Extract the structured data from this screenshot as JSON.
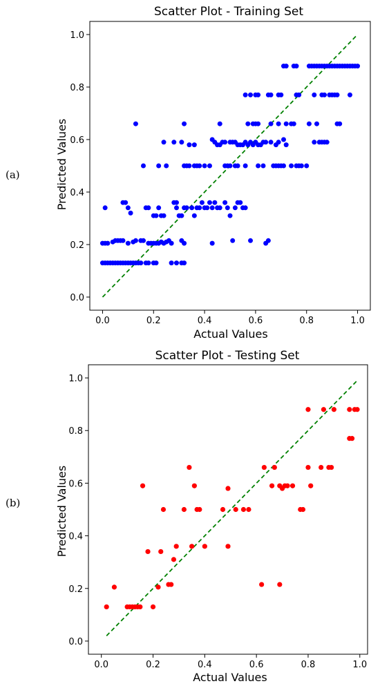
{
  "chart_data": [
    {
      "type": "scatter",
      "panel_label": "(a)",
      "title": "Scatter Plot - Training Set",
      "xlabel": "Actual Values",
      "ylabel": "Predicted Values",
      "xlim": [
        -0.05,
        1.05
      ],
      "ylim": [
        -0.05,
        1.05
      ],
      "xticks": [
        "0.0",
        "0.2",
        "0.4",
        "0.6",
        "0.8",
        "1.0"
      ],
      "yticks": [
        "0.0",
        "0.2",
        "0.4",
        "0.6",
        "0.8",
        "1.0"
      ],
      "grid": false,
      "point_color": "#0000ff",
      "reference_line": {
        "x": [
          0,
          1
        ],
        "y": [
          0,
          1
        ],
        "style": "dashed",
        "color": "#008000"
      },
      "points": [
        [
          0.0,
          0.13
        ],
        [
          0.01,
          0.13
        ],
        [
          0.02,
          0.13
        ],
        [
          0.03,
          0.13
        ],
        [
          0.04,
          0.13
        ],
        [
          0.05,
          0.13
        ],
        [
          0.06,
          0.13
        ],
        [
          0.07,
          0.13
        ],
        [
          0.08,
          0.13
        ],
        [
          0.09,
          0.13
        ],
        [
          0.1,
          0.13
        ],
        [
          0.11,
          0.13
        ],
        [
          0.12,
          0.13
        ],
        [
          0.13,
          0.13
        ],
        [
          0.14,
          0.13
        ],
        [
          0.15,
          0.13
        ],
        [
          0.17,
          0.13
        ],
        [
          0.18,
          0.13
        ],
        [
          0.2,
          0.13
        ],
        [
          0.21,
          0.13
        ],
        [
          0.27,
          0.13
        ],
        [
          0.29,
          0.13
        ],
        [
          0.31,
          0.13
        ],
        [
          0.32,
          0.13
        ],
        [
          0.0,
          0.205
        ],
        [
          0.01,
          0.205
        ],
        [
          0.02,
          0.205
        ],
        [
          0.04,
          0.21
        ],
        [
          0.05,
          0.215
        ],
        [
          0.06,
          0.215
        ],
        [
          0.07,
          0.215
        ],
        [
          0.08,
          0.215
        ],
        [
          0.1,
          0.205
        ],
        [
          0.12,
          0.21
        ],
        [
          0.13,
          0.215
        ],
        [
          0.15,
          0.215
        ],
        [
          0.16,
          0.215
        ],
        [
          0.18,
          0.205
        ],
        [
          0.19,
          0.205
        ],
        [
          0.2,
          0.205
        ],
        [
          0.21,
          0.205
        ],
        [
          0.22,
          0.205
        ],
        [
          0.23,
          0.21
        ],
        [
          0.24,
          0.205
        ],
        [
          0.25,
          0.21
        ],
        [
          0.26,
          0.215
        ],
        [
          0.27,
          0.205
        ],
        [
          0.31,
          0.215
        ],
        [
          0.32,
          0.205
        ],
        [
          0.43,
          0.205
        ],
        [
          0.51,
          0.215
        ],
        [
          0.58,
          0.215
        ],
        [
          0.64,
          0.205
        ],
        [
          0.65,
          0.215
        ],
        [
          0.01,
          0.34
        ],
        [
          0.08,
          0.36
        ],
        [
          0.09,
          0.36
        ],
        [
          0.1,
          0.34
        ],
        [
          0.11,
          0.32
        ],
        [
          0.17,
          0.34
        ],
        [
          0.18,
          0.34
        ],
        [
          0.2,
          0.31
        ],
        [
          0.21,
          0.31
        ],
        [
          0.22,
          0.34
        ],
        [
          0.23,
          0.31
        ],
        [
          0.24,
          0.31
        ],
        [
          0.28,
          0.36
        ],
        [
          0.29,
          0.36
        ],
        [
          0.29,
          0.34
        ],
        [
          0.3,
          0.31
        ],
        [
          0.31,
          0.31
        ],
        [
          0.32,
          0.34
        ],
        [
          0.33,
          0.34
        ],
        [
          0.35,
          0.34
        ],
        [
          0.36,
          0.31
        ],
        [
          0.37,
          0.34
        ],
        [
          0.38,
          0.34
        ],
        [
          0.39,
          0.36
        ],
        [
          0.4,
          0.34
        ],
        [
          0.41,
          0.34
        ],
        [
          0.42,
          0.36
        ],
        [
          0.43,
          0.34
        ],
        [
          0.44,
          0.36
        ],
        [
          0.45,
          0.34
        ],
        [
          0.46,
          0.34
        ],
        [
          0.48,
          0.36
        ],
        [
          0.49,
          0.34
        ],
        [
          0.5,
          0.31
        ],
        [
          0.52,
          0.34
        ],
        [
          0.53,
          0.36
        ],
        [
          0.54,
          0.36
        ],
        [
          0.55,
          0.34
        ],
        [
          0.56,
          0.34
        ],
        [
          0.16,
          0.5
        ],
        [
          0.22,
          0.5
        ],
        [
          0.25,
          0.5
        ],
        [
          0.32,
          0.5
        ],
        [
          0.33,
          0.5
        ],
        [
          0.34,
          0.5
        ],
        [
          0.36,
          0.5
        ],
        [
          0.37,
          0.5
        ],
        [
          0.38,
          0.5
        ],
        [
          0.4,
          0.5
        ],
        [
          0.42,
          0.5
        ],
        [
          0.48,
          0.5
        ],
        [
          0.49,
          0.5
        ],
        [
          0.5,
          0.5
        ],
        [
          0.52,
          0.5
        ],
        [
          0.53,
          0.5
        ],
        [
          0.56,
          0.5
        ],
        [
          0.61,
          0.5
        ],
        [
          0.63,
          0.5
        ],
        [
          0.67,
          0.5
        ],
        [
          0.68,
          0.5
        ],
        [
          0.69,
          0.5
        ],
        [
          0.7,
          0.5
        ],
        [
          0.71,
          0.5
        ],
        [
          0.74,
          0.5
        ],
        [
          0.76,
          0.5
        ],
        [
          0.77,
          0.5
        ],
        [
          0.78,
          0.5
        ],
        [
          0.8,
          0.5
        ],
        [
          0.24,
          0.59
        ],
        [
          0.28,
          0.59
        ],
        [
          0.31,
          0.59
        ],
        [
          0.34,
          0.58
        ],
        [
          0.36,
          0.58
        ],
        [
          0.43,
          0.6
        ],
        [
          0.44,
          0.59
        ],
        [
          0.45,
          0.58
        ],
        [
          0.46,
          0.58
        ],
        [
          0.47,
          0.59
        ],
        [
          0.48,
          0.59
        ],
        [
          0.5,
          0.59
        ],
        [
          0.51,
          0.59
        ],
        [
          0.52,
          0.59
        ],
        [
          0.53,
          0.58
        ],
        [
          0.54,
          0.58
        ],
        [
          0.55,
          0.58
        ],
        [
          0.56,
          0.59
        ],
        [
          0.57,
          0.58
        ],
        [
          0.58,
          0.59
        ],
        [
          0.59,
          0.58
        ],
        [
          0.6,
          0.59
        ],
        [
          0.61,
          0.58
        ],
        [
          0.62,
          0.58
        ],
        [
          0.63,
          0.59
        ],
        [
          0.64,
          0.59
        ],
        [
          0.66,
          0.59
        ],
        [
          0.68,
          0.58
        ],
        [
          0.69,
          0.59
        ],
        [
          0.71,
          0.6
        ],
        [
          0.72,
          0.58
        ],
        [
          0.83,
          0.59
        ],
        [
          0.85,
          0.59
        ],
        [
          0.86,
          0.59
        ],
        [
          0.87,
          0.59
        ],
        [
          0.88,
          0.59
        ],
        [
          0.13,
          0.66
        ],
        [
          0.32,
          0.66
        ],
        [
          0.46,
          0.66
        ],
        [
          0.57,
          0.66
        ],
        [
          0.59,
          0.66
        ],
        [
          0.6,
          0.66
        ],
        [
          0.61,
          0.66
        ],
        [
          0.66,
          0.66
        ],
        [
          0.69,
          0.66
        ],
        [
          0.72,
          0.66
        ],
        [
          0.74,
          0.66
        ],
        [
          0.75,
          0.66
        ],
        [
          0.81,
          0.66
        ],
        [
          0.84,
          0.66
        ],
        [
          0.92,
          0.66
        ],
        [
          0.93,
          0.66
        ],
        [
          0.56,
          0.77
        ],
        [
          0.58,
          0.77
        ],
        [
          0.6,
          0.77
        ],
        [
          0.61,
          0.77
        ],
        [
          0.65,
          0.77
        ],
        [
          0.66,
          0.77
        ],
        [
          0.69,
          0.77
        ],
        [
          0.7,
          0.77
        ],
        [
          0.76,
          0.77
        ],
        [
          0.77,
          0.77
        ],
        [
          0.83,
          0.77
        ],
        [
          0.86,
          0.77
        ],
        [
          0.87,
          0.77
        ],
        [
          0.89,
          0.77
        ],
        [
          0.9,
          0.77
        ],
        [
          0.91,
          0.77
        ],
        [
          0.92,
          0.77
        ],
        [
          0.97,
          0.77
        ],
        [
          0.71,
          0.88
        ],
        [
          0.72,
          0.88
        ],
        [
          0.75,
          0.88
        ],
        [
          0.76,
          0.88
        ],
        [
          0.81,
          0.88
        ],
        [
          0.82,
          0.88
        ],
        [
          0.83,
          0.88
        ],
        [
          0.84,
          0.88
        ],
        [
          0.85,
          0.88
        ],
        [
          0.86,
          0.88
        ],
        [
          0.87,
          0.88
        ],
        [
          0.88,
          0.88
        ],
        [
          0.89,
          0.88
        ],
        [
          0.9,
          0.88
        ],
        [
          0.91,
          0.88
        ],
        [
          0.92,
          0.88
        ],
        [
          0.93,
          0.88
        ],
        [
          0.94,
          0.88
        ],
        [
          0.95,
          0.88
        ],
        [
          0.96,
          0.88
        ],
        [
          0.97,
          0.88
        ],
        [
          0.98,
          0.88
        ],
        [
          0.99,
          0.88
        ],
        [
          1.0,
          0.88
        ]
      ]
    },
    {
      "type": "scatter",
      "panel_label": "(b)",
      "title": "Scatter Plot - Testing Set",
      "xlabel": "Actual Values",
      "ylabel": "Predicted Values",
      "xlim": [
        -0.05,
        1.03
      ],
      "ylim": [
        -0.05,
        1.05
      ],
      "xticks": [
        "0.0",
        "0.2",
        "0.4",
        "0.6",
        "0.8",
        "1.0"
      ],
      "yticks": [
        "0.0",
        "0.2",
        "0.4",
        "0.6",
        "0.8",
        "1.0"
      ],
      "grid": false,
      "point_color": "#ff0000",
      "reference_line": {
        "x": [
          0.02,
          0.99
        ],
        "y": [
          0.02,
          0.99
        ],
        "style": "dashed",
        "color": "#008000"
      },
      "points": [
        [
          0.02,
          0.13
        ],
        [
          0.05,
          0.205
        ],
        [
          0.1,
          0.13
        ],
        [
          0.11,
          0.13
        ],
        [
          0.12,
          0.13
        ],
        [
          0.13,
          0.13
        ],
        [
          0.14,
          0.13
        ],
        [
          0.15,
          0.13
        ],
        [
          0.2,
          0.13
        ],
        [
          0.16,
          0.59
        ],
        [
          0.18,
          0.34
        ],
        [
          0.22,
          0.205
        ],
        [
          0.23,
          0.34
        ],
        [
          0.24,
          0.5
        ],
        [
          0.26,
          0.215
        ],
        [
          0.27,
          0.215
        ],
        [
          0.28,
          0.31
        ],
        [
          0.29,
          0.36
        ],
        [
          0.32,
          0.5
        ],
        [
          0.34,
          0.66
        ],
        [
          0.35,
          0.36
        ],
        [
          0.36,
          0.59
        ],
        [
          0.37,
          0.5
        ],
        [
          0.38,
          0.5
        ],
        [
          0.4,
          0.36
        ],
        [
          0.47,
          0.5
        ],
        [
          0.49,
          0.58
        ],
        [
          0.49,
          0.36
        ],
        [
          0.52,
          0.5
        ],
        [
          0.55,
          0.5
        ],
        [
          0.57,
          0.5
        ],
        [
          0.62,
          0.215
        ],
        [
          0.63,
          0.66
        ],
        [
          0.66,
          0.59
        ],
        [
          0.67,
          0.66
        ],
        [
          0.69,
          0.215
        ],
        [
          0.69,
          0.59
        ],
        [
          0.7,
          0.58
        ],
        [
          0.71,
          0.59
        ],
        [
          0.72,
          0.59
        ],
        [
          0.74,
          0.59
        ],
        [
          0.77,
          0.5
        ],
        [
          0.78,
          0.5
        ],
        [
          0.8,
          0.66
        ],
        [
          0.8,
          0.88
        ],
        [
          0.81,
          0.59
        ],
        [
          0.85,
          0.66
        ],
        [
          0.86,
          0.88
        ],
        [
          0.88,
          0.66
        ],
        [
          0.89,
          0.66
        ],
        [
          0.9,
          0.88
        ],
        [
          0.96,
          0.88
        ],
        [
          0.96,
          0.77
        ],
        [
          0.97,
          0.77
        ],
        [
          0.98,
          0.88
        ],
        [
          0.99,
          0.88
        ]
      ]
    }
  ]
}
